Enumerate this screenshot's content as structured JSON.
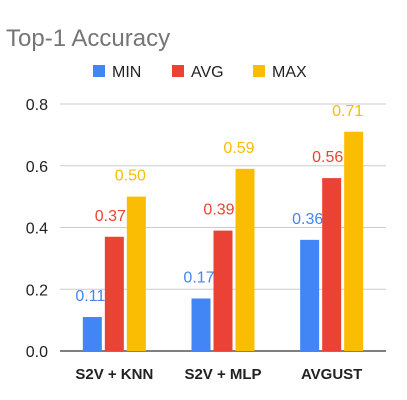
{
  "chart_data": {
    "type": "bar",
    "title": "Top-1 Accuracy",
    "xlabel": "",
    "ylabel": "",
    "categories": [
      "S2V + KNN",
      "S2V + MLP",
      "AVGUST"
    ],
    "series": [
      {
        "name": "MIN",
        "values": [
          0.11,
          0.17,
          0.36
        ],
        "labels": [
          "0.11",
          "0.17",
          "0.36"
        ],
        "color": "#4285f4"
      },
      {
        "name": "AVG",
        "values": [
          0.37,
          0.39,
          0.56
        ],
        "labels": [
          "0.37",
          "0.39",
          "0.56"
        ],
        "color": "#ea4335"
      },
      {
        "name": "MAX",
        "values": [
          0.5,
          0.59,
          0.71
        ],
        "labels": [
          "0.50",
          "0.59",
          "0.71"
        ],
        "color": "#fbbc04"
      }
    ],
    "yticks": [
      "0.0",
      "0.2",
      "0.4",
      "0.6",
      "0.8"
    ],
    "ylim": [
      0,
      0.8
    ],
    "grid": true,
    "legend_position": "top"
  }
}
